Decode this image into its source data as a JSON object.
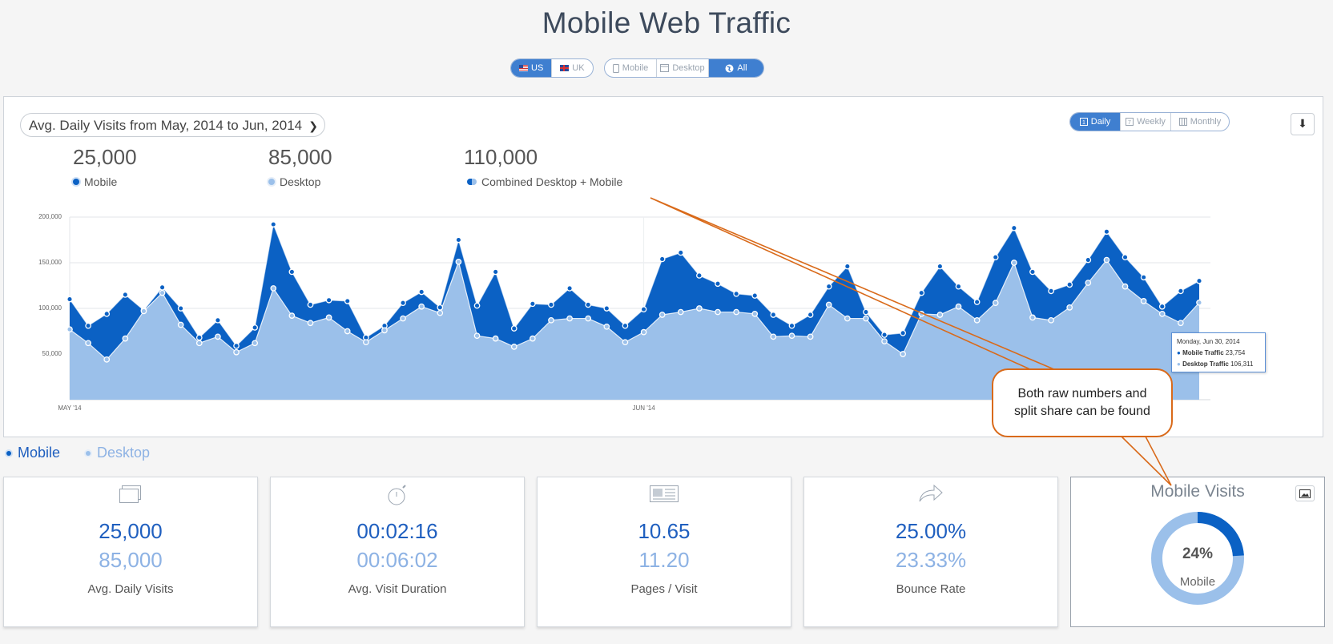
{
  "page_title": "Mobile Web Traffic",
  "region_toggle": [
    {
      "label": "US",
      "active": true,
      "icon": "us-flag-icon"
    },
    {
      "label": "UK",
      "active": false,
      "icon": "uk-flag-icon"
    }
  ],
  "device_toggle": [
    {
      "label": "Mobile",
      "active": false,
      "icon": "mobile-icon"
    },
    {
      "label": "Desktop",
      "active": false,
      "icon": "desktop-icon"
    },
    {
      "label": "All",
      "active": true,
      "icon": "globe-icon"
    }
  ],
  "range_dropdown": "Avg. Daily Visits from May, 2014 to Jun, 2014",
  "granularity": [
    {
      "label": "Daily",
      "active": true
    },
    {
      "label": "Weekly",
      "active": false
    },
    {
      "label": "Monthly",
      "active": false
    }
  ],
  "summary": {
    "mobile": {
      "value": "25,000",
      "label": "Mobile"
    },
    "desktop": {
      "value": "85,000",
      "label": "Desktop"
    },
    "combined": {
      "value": "110,000",
      "label": "Combined Desktop + Mobile"
    }
  },
  "chart_data": {
    "type": "area",
    "stacked": true,
    "x_tick_labels": [
      "MAY '14",
      "JUN '14"
    ],
    "y_ticks": [
      50000,
      100000,
      150000,
      200000
    ],
    "y_tick_labels": [
      "50,000",
      "100,000",
      "150,000",
      "200,000"
    ],
    "ylim": [
      0,
      200000
    ],
    "grid": true,
    "series": [
      {
        "name": "Desktop",
        "color": "#9bc0ea",
        "values": [
          77000,
          62000,
          44000,
          67000,
          97000,
          117000,
          82000,
          62000,
          69000,
          52000,
          62000,
          122000,
          92000,
          84000,
          90000,
          75000,
          63000,
          76000,
          89000,
          102000,
          95000,
          151000,
          70000,
          67000,
          58000,
          67000,
          87000,
          89000,
          89000,
          80000,
          63000,
          74000,
          93000,
          96000,
          100000,
          96000,
          96000,
          94000,
          69000,
          70000,
          69000,
          104000,
          89000,
          89000,
          64000,
          50000,
          94000,
          93000,
          102000,
          87000,
          106000,
          150000,
          90000,
          87000,
          101000,
          128000,
          153000,
          124000,
          108000,
          94000,
          84000,
          106311
        ]
      },
      {
        "name": "Mobile",
        "color": "#0b61c4",
        "values": [
          33000,
          19000,
          50000,
          48000,
          1000,
          6000,
          18000,
          6000,
          18000,
          7000,
          17000,
          70000,
          48000,
          20000,
          19000,
          33000,
          5000,
          5000,
          17000,
          16000,
          6000,
          24000,
          33000,
          73000,
          20000,
          38000,
          17000,
          33000,
          15000,
          20000,
          18000,
          25000,
          61000,
          65000,
          36000,
          31000,
          20000,
          20000,
          24000,
          11000,
          24000,
          20000,
          57000,
          7000,
          7000,
          23000,
          23000,
          53000,
          22000,
          20000,
          50000,
          38000,
          50000,
          32000,
          25000,
          25000,
          31000,
          32000,
          26000,
          8000,
          35000,
          23754
        ]
      }
    ]
  },
  "tooltip": {
    "date": "Monday, Jun 30, 2014",
    "mobile_label": "Mobile Traffic",
    "mobile_value": "23,754",
    "desktop_label": "Desktop Traffic",
    "desktop_value": "106,311"
  },
  "legend": [
    "Mobile",
    "Desktop"
  ],
  "stats": [
    {
      "icon": "visits-icon",
      "mobile": "25,000",
      "desktop": "85,000",
      "label": "Avg. Daily Visits"
    },
    {
      "icon": "stopwatch-icon",
      "mobile": "00:02:16",
      "desktop": "00:06:02",
      "label": "Avg. Visit Duration"
    },
    {
      "icon": "pages-icon",
      "mobile": "10.65",
      "desktop": "11.20",
      "label": "Pages / Visit"
    },
    {
      "icon": "bounce-arrow-icon",
      "mobile": "25.00%",
      "desktop": "23.33%",
      "label": "Bounce Rate"
    }
  ],
  "donut": {
    "title": "Mobile Visits",
    "percent": "24%",
    "fraction": 0.24,
    "label": "Mobile",
    "colors": {
      "mobile": "#0b61c4",
      "desktop": "#9bc0ea"
    }
  },
  "callout": {
    "line1": "Both raw numbers and",
    "line2": "split share can be found",
    "color": "#d96a1a"
  }
}
